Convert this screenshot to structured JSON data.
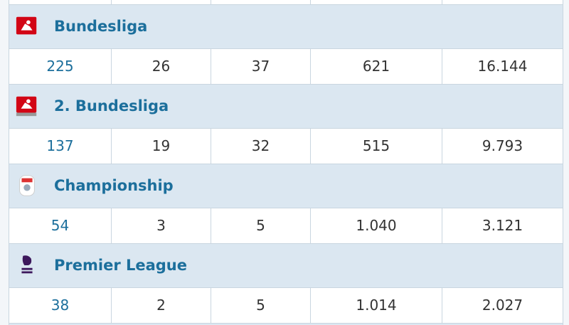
{
  "leagues": [
    {
      "name": "Bundesliga",
      "values": [
        "225",
        "26",
        "37",
        "621",
        "16.144"
      ]
    },
    {
      "name": "2. Bundesliga",
      "values": [
        "137",
        "19",
        "32",
        "515",
        "9.793"
      ]
    },
    {
      "name": "Championship",
      "values": [
        "54",
        "3",
        "5",
        "1.040",
        "3.121"
      ]
    },
    {
      "name": "Premier League",
      "values": [
        "38",
        "2",
        "5",
        "1.014",
        "2.027"
      ]
    }
  ]
}
